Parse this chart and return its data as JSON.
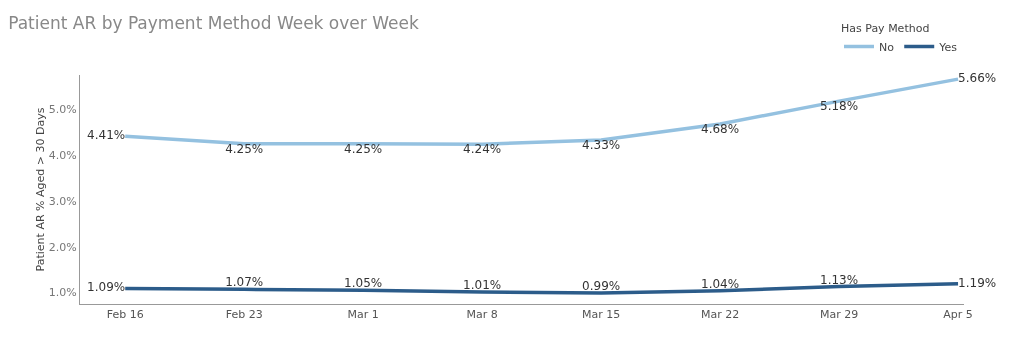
{
  "chart_data": {
    "type": "line",
    "title": "Patient AR by Payment Method Week over Week",
    "ylabel": "Patient AR % Aged > 30 Days",
    "legend_title": "Has Pay Method",
    "legend": "top right",
    "grid": false,
    "marker": "none",
    "line_style": "solid",
    "categories": [
      "Feb 16",
      "Feb 23",
      "Mar 1",
      "Mar 8",
      "Mar 15",
      "Mar 22",
      "Mar 29",
      "Apr 5"
    ],
    "ylim": [
      0.75,
      5.75
    ],
    "yticks": [
      {
        "value": 1,
        "label": "1.0%"
      },
      {
        "value": 2,
        "label": "2.0%"
      },
      {
        "value": 3,
        "label": "3.0%"
      },
      {
        "value": 4,
        "label": "4.0%"
      },
      {
        "value": 5,
        "label": "5.0%"
      }
    ],
    "series": [
      {
        "name": "No",
        "color": "#94c1e0",
        "values": [
          4.41,
          4.25,
          4.25,
          4.24,
          4.33,
          4.68,
          5.18,
          5.66
        ],
        "value_labels": [
          "4.41%",
          "4.25%",
          "4.25%",
          "4.24%",
          "4.33%",
          "4.68%",
          "5.18%",
          "5.66%"
        ]
      },
      {
        "name": "Yes",
        "color": "#2c5c8a",
        "values": [
          1.09,
          1.07,
          1.05,
          1.01,
          0.99,
          1.04,
          1.13,
          1.19
        ],
        "value_labels": [
          "1.09%",
          "1.07%",
          "1.05%",
          "1.01%",
          "0.99%",
          "1.04%",
          "1.13%",
          "1.19%"
        ]
      }
    ]
  }
}
